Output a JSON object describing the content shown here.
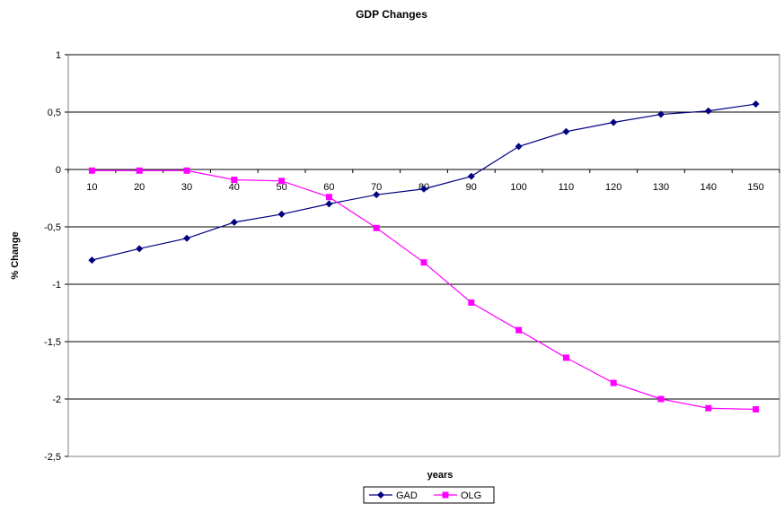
{
  "chart_data": {
    "type": "line",
    "title": "GDP Changes",
    "xlabel": "years",
    "ylabel": "% Change",
    "categories": [
      "10",
      "20",
      "30",
      "40",
      "50",
      "60",
      "70",
      "80",
      "90",
      "100",
      "110",
      "120",
      "130",
      "140",
      "150"
    ],
    "y_ticks": [
      "1",
      "0,5",
      "0",
      "-0,5",
      "-1",
      "-1,5",
      "-2",
      "-2,5"
    ],
    "y_tick_values": [
      1,
      0.5,
      0,
      -0.5,
      -1,
      -1.5,
      -2,
      -2.5
    ],
    "ylim": [
      -2.5,
      1
    ],
    "grid": "horizontal",
    "legend_position": "bottom",
    "series": [
      {
        "name": "GAD",
        "color": "#000080",
        "marker": "diamond",
        "values": [
          -0.79,
          -0.69,
          -0.6,
          -0.46,
          -0.39,
          -0.3,
          -0.22,
          -0.17,
          -0.06,
          0.2,
          0.33,
          0.41,
          0.48,
          0.51,
          0.57
        ]
      },
      {
        "name": "OLG",
        "color": "#ff00ff",
        "marker": "square",
        "values": [
          -0.01,
          -0.01,
          -0.01,
          -0.09,
          -0.1,
          -0.24,
          -0.51,
          -0.81,
          -1.16,
          -1.4,
          -1.64,
          -1.86,
          -2.0,
          -2.08,
          -2.09
        ]
      }
    ]
  }
}
